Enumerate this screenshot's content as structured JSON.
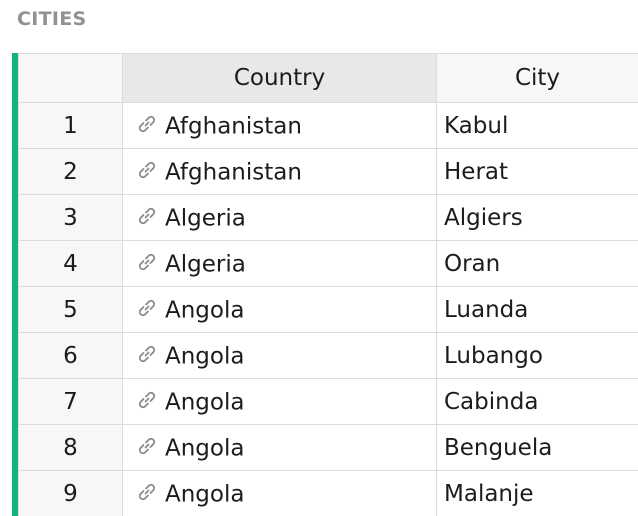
{
  "section": {
    "title": "CITIES"
  },
  "columns": {
    "country": "Country",
    "city": "City"
  },
  "rows": [
    {
      "num": "1",
      "country": "Afghanistan",
      "city": "Kabul"
    },
    {
      "num": "2",
      "country": "Afghanistan",
      "city": "Herat"
    },
    {
      "num": "3",
      "country": "Algeria",
      "city": "Algiers"
    },
    {
      "num": "4",
      "country": "Algeria",
      "city": "Oran"
    },
    {
      "num": "5",
      "country": "Angola",
      "city": "Luanda"
    },
    {
      "num": "6",
      "country": "Angola",
      "city": "Lubango"
    },
    {
      "num": "7",
      "country": "Angola",
      "city": "Cabinda"
    },
    {
      "num": "8",
      "country": "Angola",
      "city": "Benguela"
    },
    {
      "num": "9",
      "country": "Angola",
      "city": "Malanje"
    }
  ],
  "icons": {
    "reference": "link-icon"
  },
  "colors": {
    "accent": "#16b378"
  }
}
